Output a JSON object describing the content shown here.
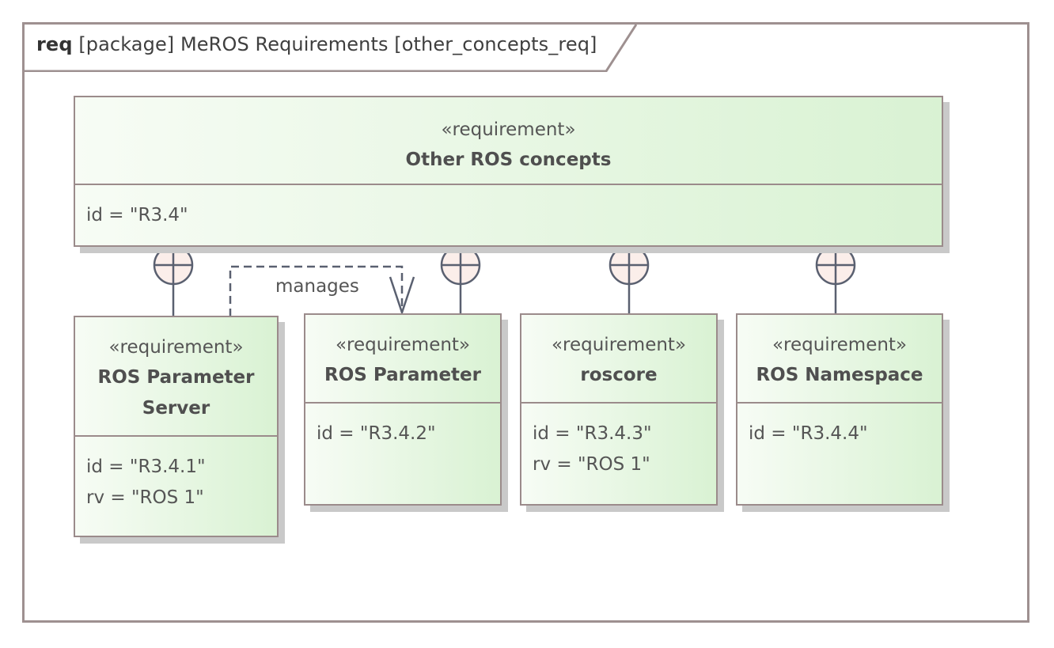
{
  "frame": {
    "kind": "req",
    "title": "[package] MeROS Requirements [other_concepts_req]"
  },
  "requirements": {
    "parent": {
      "stereotype": "«requirement»",
      "name": "Other ROS concepts",
      "id": "id = \"R3.4\""
    },
    "param_server": {
      "stereotype": "«requirement»",
      "name_line1": "ROS Parameter",
      "name_line2": "Server",
      "id": "id = \"R3.4.1\"",
      "rv": "rv = \"ROS 1\""
    },
    "param": {
      "stereotype": "«requirement»",
      "name": "ROS Parameter",
      "id": "id = \"R3.4.2\""
    },
    "roscore": {
      "stereotype": "«requirement»",
      "name": "roscore",
      "id": "id = \"R3.4.3\"",
      "rv": "rv = \"ROS 1\""
    },
    "namespace": {
      "stereotype": "«requirement»",
      "name": "ROS Namespace",
      "id": "id = \"R3.4.4\""
    }
  },
  "relations": {
    "manages_label": "manages"
  },
  "colors": {
    "border": "#9b8b8b",
    "fill_light": "#f7fcf5",
    "fill_dark": "#d9f2d3",
    "connector": "#5a6070",
    "containment_fill": "#fbeeea"
  }
}
